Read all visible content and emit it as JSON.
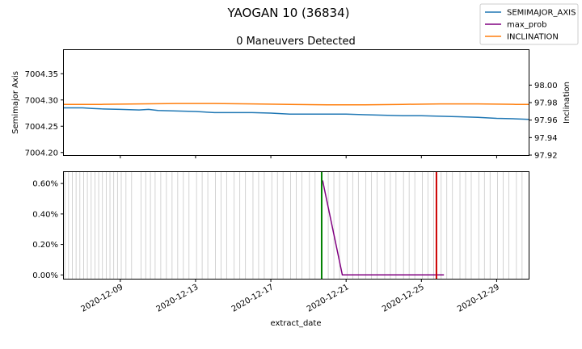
{
  "figure": {
    "suptitle": "YAOGAN 10 (36834)"
  },
  "legend": {
    "placement": "top-right",
    "entries": [
      {
        "label": "SEMIMAJOR_AXIS",
        "color": "#1f77b4"
      },
      {
        "label": "max_prob",
        "color": "#800080"
      },
      {
        "label": "INCLINATION",
        "color": "#ff7f0e"
      }
    ]
  },
  "chart_data": [
    {
      "type": "line",
      "title": "0 Maneuvers Detected",
      "xlabel": "",
      "ylabel": "Semimajor Axis",
      "ylabel_right": "Inclination",
      "xlim": [
        "2020-12-06",
        "2020-12-30.7"
      ],
      "ylim": [
        7004.195,
        7004.395
      ],
      "ylim_right": [
        97.92,
        98.04
      ],
      "yticks": [
        7004.2,
        7004.25,
        7004.3,
        7004.35
      ],
      "ytick_labels": [
        "7004.20",
        "7004.25",
        "7004.30",
        "7004.35"
      ],
      "yticks_right": [
        97.92,
        97.94,
        97.96,
        97.98,
        98.0
      ],
      "ytick_labels_right": [
        "97.92",
        "97.94",
        "97.96",
        "97.98",
        "98.00"
      ],
      "grid": false,
      "series": [
        {
          "name": "SEMIMAJOR_AXIS",
          "axis": "left",
          "color": "#1f77b4",
          "x": [
            "2020-12-06",
            "2020-12-07",
            "2020-12-07.5",
            "2020-12-08",
            "2020-12-09",
            "2020-12-10",
            "2020-12-10.5",
            "2020-12-11",
            "2020-12-12",
            "2020-12-13",
            "2020-12-14",
            "2020-12-15",
            "2020-12-16",
            "2020-12-17",
            "2020-12-18",
            "2020-12-19",
            "2020-12-20",
            "2020-12-21",
            "2020-12-22",
            "2020-12-23",
            "2020-12-24",
            "2020-12-25",
            "2020-12-26",
            "2020-12-27",
            "2020-12-28",
            "2020-12-29",
            "2020-12-30",
            "2020-12-30.7"
          ],
          "y": [
            7004.285,
            7004.285,
            7004.284,
            7004.283,
            7004.282,
            7004.281,
            7004.282,
            7004.28,
            7004.279,
            7004.278,
            7004.276,
            7004.276,
            7004.276,
            7004.275,
            7004.273,
            7004.273,
            7004.273,
            7004.273,
            7004.272,
            7004.271,
            7004.27,
            7004.27,
            7004.269,
            7004.268,
            7004.267,
            7004.265,
            7004.264,
            7004.263
          ]
        },
        {
          "name": "INCLINATION",
          "axis": "right",
          "color": "#ff7f0e",
          "x": [
            "2020-12-06",
            "2020-12-08",
            "2020-12-10",
            "2020-12-12",
            "2020-12-14",
            "2020-12-16",
            "2020-12-18",
            "2020-12-20",
            "2020-12-22",
            "2020-12-24",
            "2020-12-26",
            "2020-12-28",
            "2020-12-30",
            "2020-12-30.7"
          ],
          "y": [
            97.978,
            97.978,
            97.9785,
            97.979,
            97.979,
            97.9785,
            97.978,
            97.9775,
            97.9775,
            97.978,
            97.9785,
            97.9785,
            97.978,
            97.978
          ]
        }
      ]
    },
    {
      "type": "line",
      "title": "",
      "xlabel": "extract_date",
      "ylabel": "",
      "xlim": [
        "2020-12-06",
        "2020-12-30.7"
      ],
      "ylim": [
        -0.00025,
        0.00675
      ],
      "yticks": [
        0.0,
        0.002,
        0.004,
        0.006
      ],
      "ytick_labels": [
        "0.00%",
        "0.20%",
        "0.40%",
        "0.60%"
      ],
      "xticks": [
        "2020-12-09",
        "2020-12-13",
        "2020-12-17",
        "2020-12-21",
        "2020-12-25",
        "2020-12-29"
      ],
      "xtick_labels": [
        "2020-12-09",
        "2020-12-13",
        "2020-12-17",
        "2020-12-21",
        "2020-12-25",
        "2020-12-29"
      ],
      "grid": false,
      "series": [
        {
          "name": "max_prob",
          "color": "#800080",
          "x": [
            "2020-12-19.75",
            "2020-12-20.8",
            "2020-12-21",
            "2020-12-26.2"
          ],
          "y": [
            0.0062,
            0.0,
            0.0,
            0.0
          ]
        }
      ],
      "observation_lines": {
        "color": "#c8c8c8",
        "x": [
          "2020-12-06.05",
          "2020-12-06.25",
          "2020-12-06.45",
          "2020-12-06.65",
          "2020-12-06.85",
          "2020-12-07.05",
          "2020-12-07.25",
          "2020-12-07.45",
          "2020-12-07.65",
          "2020-12-07.85",
          "2020-12-08.05",
          "2020-12-08.25",
          "2020-12-08.45",
          "2020-12-08.65",
          "2020-12-08.85",
          "2020-12-09.05",
          "2020-12-09.3",
          "2020-12-09.6",
          "2020-12-10.1",
          "2020-12-10.35",
          "2020-12-10.6",
          "2020-12-10.85",
          "2020-12-11.15",
          "2020-12-11.45",
          "2020-12-11.75",
          "2020-12-12.05",
          "2020-12-12.35",
          "2020-12-12.65",
          "2020-12-13.05",
          "2020-12-13.35",
          "2020-12-13.65",
          "2020-12-14.05",
          "2020-12-14.35",
          "2020-12-14.65",
          "2020-12-15.05",
          "2020-12-15.35",
          "2020-12-15.65",
          "2020-12-16.05",
          "2020-12-16.35",
          "2020-12-16.65",
          "2020-12-17.05",
          "2020-12-17.35",
          "2020-12-17.65",
          "2020-12-18.05",
          "2020-12-18.35",
          "2020-12-18.65",
          "2020-12-19.05",
          "2020-12-19.35",
          "2020-12-20.05",
          "2020-12-20.35",
          "2020-12-20.65",
          "2020-12-21.05",
          "2020-12-21.35",
          "2020-12-21.65",
          "2020-12-22.05",
          "2020-12-22.35",
          "2020-12-22.65",
          "2020-12-23.05",
          "2020-12-23.35",
          "2020-12-23.65",
          "2020-12-24.05",
          "2020-12-24.35",
          "2020-12-24.65",
          "2020-12-25.05",
          "2020-12-25.35",
          "2020-12-25.65",
          "2020-12-26.05",
          "2020-12-26.35",
          "2020-12-26.65",
          "2020-12-27.05",
          "2020-12-27.35",
          "2020-12-27.65",
          "2020-12-28.05",
          "2020-12-28.35",
          "2020-12-28.65",
          "2020-12-29.05",
          "2020-12-29.35",
          "2020-12-29.65",
          "2020-12-30.05",
          "2020-12-30.35"
        ]
      },
      "event_lines": [
        {
          "x": "2020-12-19.7",
          "color": "#008000"
        },
        {
          "x": "2020-12-25.8",
          "color": "#cc0000"
        }
      ]
    }
  ]
}
